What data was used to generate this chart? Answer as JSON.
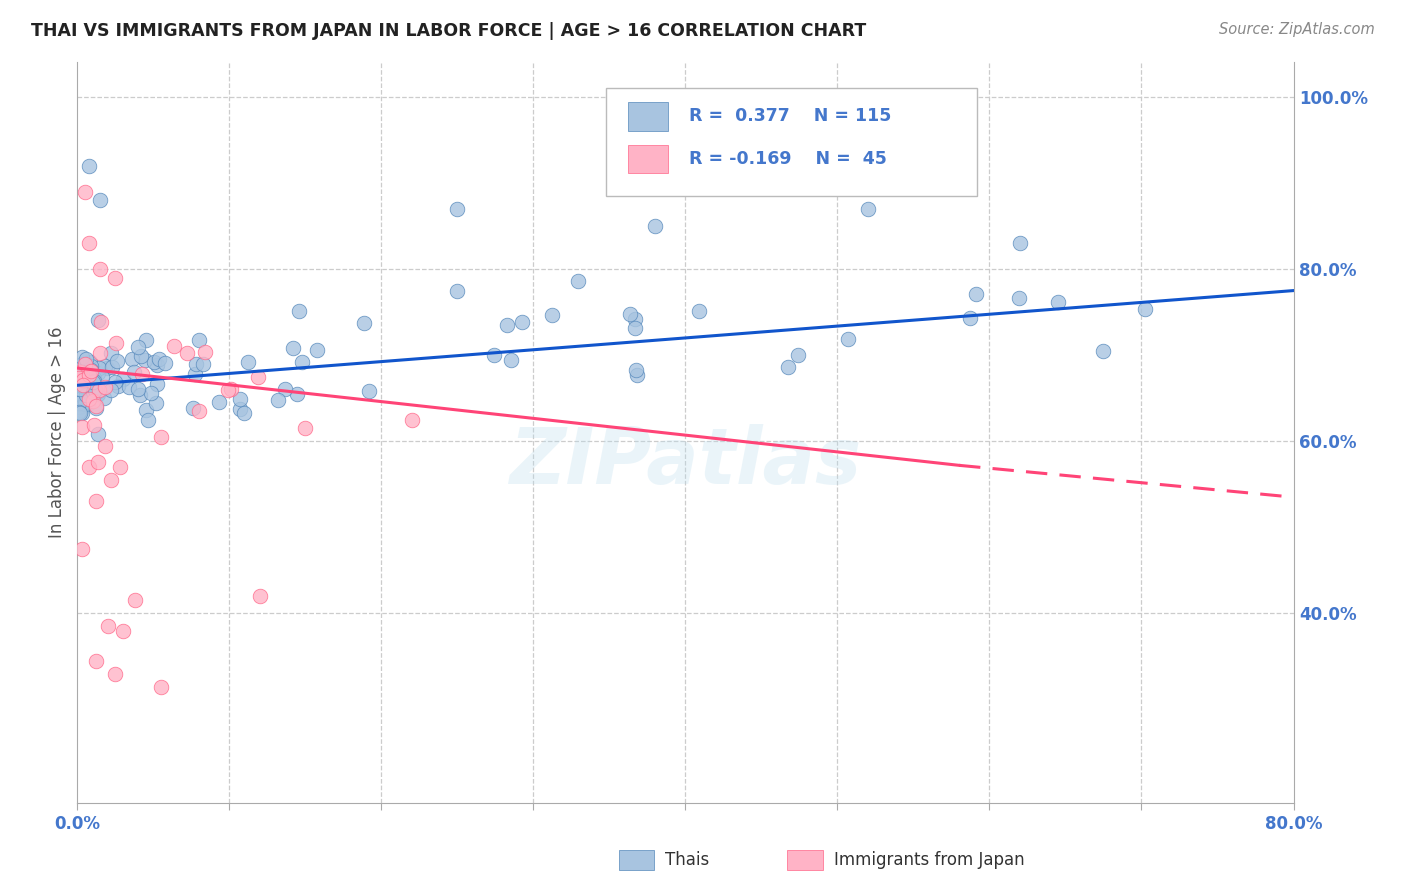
{
  "title": "THAI VS IMMIGRANTS FROM JAPAN IN LABOR FORCE | AGE > 16 CORRELATION CHART",
  "source_text": "Source: ZipAtlas.com",
  "ylabel_left": "In Labor Force | Age > 16",
  "x_min": 0.0,
  "x_max": 0.8,
  "y_min": 0.18,
  "y_max": 1.04,
  "color_blue": "#A8C4E0",
  "color_pink": "#FFB3C6",
  "color_blue_edge": "#5588BB",
  "color_pink_edge": "#FF6688",
  "color_blue_line": "#1155CC",
  "color_pink_line": "#FF4477",
  "color_axis_text": "#4477CC",
  "color_title": "#222222",
  "color_grid": "#CCCCCC",
  "legend_label1": "Thais",
  "legend_label2": "Immigrants from Japan",
  "blue_trend_x0": 0.0,
  "blue_trend_y0": 0.665,
  "blue_trend_x1": 0.8,
  "blue_trend_y1": 0.775,
  "pink_trend_x0": 0.0,
  "pink_trend_y0": 0.685,
  "pink_trend_x_split": 0.58,
  "pink_trend_y_split": 0.572,
  "pink_trend_x1": 0.8,
  "pink_trend_y1": 0.535,
  "watermark": "ZIPatlas"
}
